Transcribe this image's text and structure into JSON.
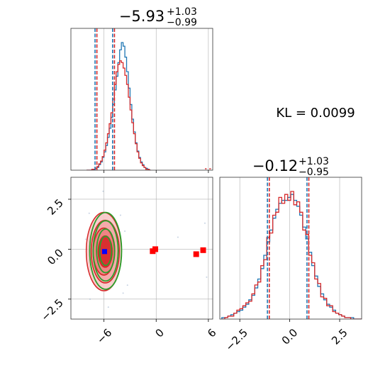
{
  "chart_data": {
    "type": "corner-plot",
    "annotation": "KL = 0.0099",
    "colors": {
      "series_a": "#1f77b4",
      "series_b": "#d62728",
      "contour_outer": "#d62728",
      "contour_fill": "#f4a6a6",
      "contour_inner": "#2ca02c",
      "median_marker": "#0000ff",
      "outlier_marker": "#ff0000",
      "grid": "#b0b0b0"
    },
    "params": [
      {
        "title_main": "−5.93",
        "title_sup": "+1.03",
        "title_sub": "−0.99",
        "median": -5.93,
        "lower": -6.92,
        "upper": -4.9,
        "range": [
          -9.8,
          6.5
        ],
        "ticks": [
          -6,
          0,
          6
        ],
        "tick_labels": [
          "−6",
          "0",
          "6"
        ]
      },
      {
        "title_main": "−0.12",
        "title_sup": "+1.03",
        "title_sub": "−0.95",
        "median": -0.12,
        "lower": -1.07,
        "upper": 0.91,
        "range": [
          -3.5,
          3.6
        ],
        "ticks": [
          -2.5,
          0,
          2.5
        ],
        "tick_labels": [
          "−2.5",
          "0.0",
          "2.5"
        ]
      }
    ],
    "hist_p1_a": {
      "bin_start": -8.0,
      "bin_width": 0.2,
      "values": [
        0,
        0,
        0,
        0,
        1,
        2,
        3,
        6,
        9,
        14,
        20,
        27,
        36,
        46,
        58,
        72,
        88,
        103,
        118,
        132,
        140,
        136,
        124,
        108,
        90,
        72,
        56,
        42,
        30,
        21,
        14,
        9,
        6,
        3,
        2,
        1,
        0
      ]
    },
    "hist_p1_b": {
      "bin_start": -8.0,
      "bin_width": 0.2,
      "values": [
        0,
        0,
        0,
        1,
        1,
        2,
        4,
        7,
        10,
        15,
        22,
        30,
        40,
        51,
        63,
        78,
        94,
        108,
        116,
        120,
        118,
        112,
        104,
        94,
        80,
        66,
        52,
        40,
        29,
        20,
        13,
        8,
        5,
        3,
        1,
        1,
        0
      ]
    },
    "hist_p2_a": {
      "bin_start": -3.4,
      "bin_width": 0.15,
      "values": [
        1,
        1,
        2,
        3,
        4,
        5,
        6,
        8,
        10,
        13,
        16,
        21,
        27,
        34,
        43,
        52,
        60,
        68,
        74,
        78,
        80,
        80,
        82,
        84,
        80,
        76,
        70,
        62,
        54,
        45,
        36,
        29,
        22,
        17,
        13,
        10,
        8,
        6,
        4,
        3,
        2,
        1,
        1,
        1,
        0,
        0,
        0
      ]
    },
    "hist_p2_b": {
      "bin_start": -3.4,
      "bin_width": 0.15,
      "values": [
        0,
        1,
        2,
        2,
        4,
        6,
        7,
        9,
        11,
        12,
        17,
        23,
        25,
        36,
        40,
        55,
        58,
        70,
        72,
        82,
        78,
        84,
        80,
        86,
        77,
        79,
        72,
        60,
        57,
        43,
        38,
        27,
        24,
        15,
        14,
        9,
        9,
        5,
        4,
        3,
        2,
        1,
        1,
        0,
        0,
        0,
        0
      ]
    },
    "contour": {
      "center": [
        -5.93,
        -0.12
      ],
      "sigma": [
        0.99,
        1.0
      ]
    },
    "median_marker": [
      -5.93,
      -0.12
    ],
    "outliers": [
      {
        "x": -0.4,
        "y": -0.1
      },
      {
        "x": -0.1,
        "y": 0.0
      },
      {
        "x": 4.6,
        "y": -0.25
      },
      {
        "x": 5.4,
        "y": -0.05
      }
    ],
    "scatter_extra": [
      {
        "x": -7.7,
        "y": 1.8
      },
      {
        "x": -7.6,
        "y": -2.5
      },
      {
        "x": -4.1,
        "y": 1.7
      },
      {
        "x": -3.8,
        "y": -2.2
      },
      {
        "x": -3.3,
        "y": -1.8
      },
      {
        "x": 5.6,
        "y": 1.3
      },
      {
        "x": 5.8,
        "y": -1.4
      },
      {
        "x": 2.5,
        "y": 0.6
      },
      {
        "x": -8.1,
        "y": 0.5
      },
      {
        "x": -3.6,
        "y": 0.9
      },
      {
        "x": -6.1,
        "y": 2.9
      },
      {
        "x": -5.5,
        "y": -2.9
      }
    ]
  }
}
